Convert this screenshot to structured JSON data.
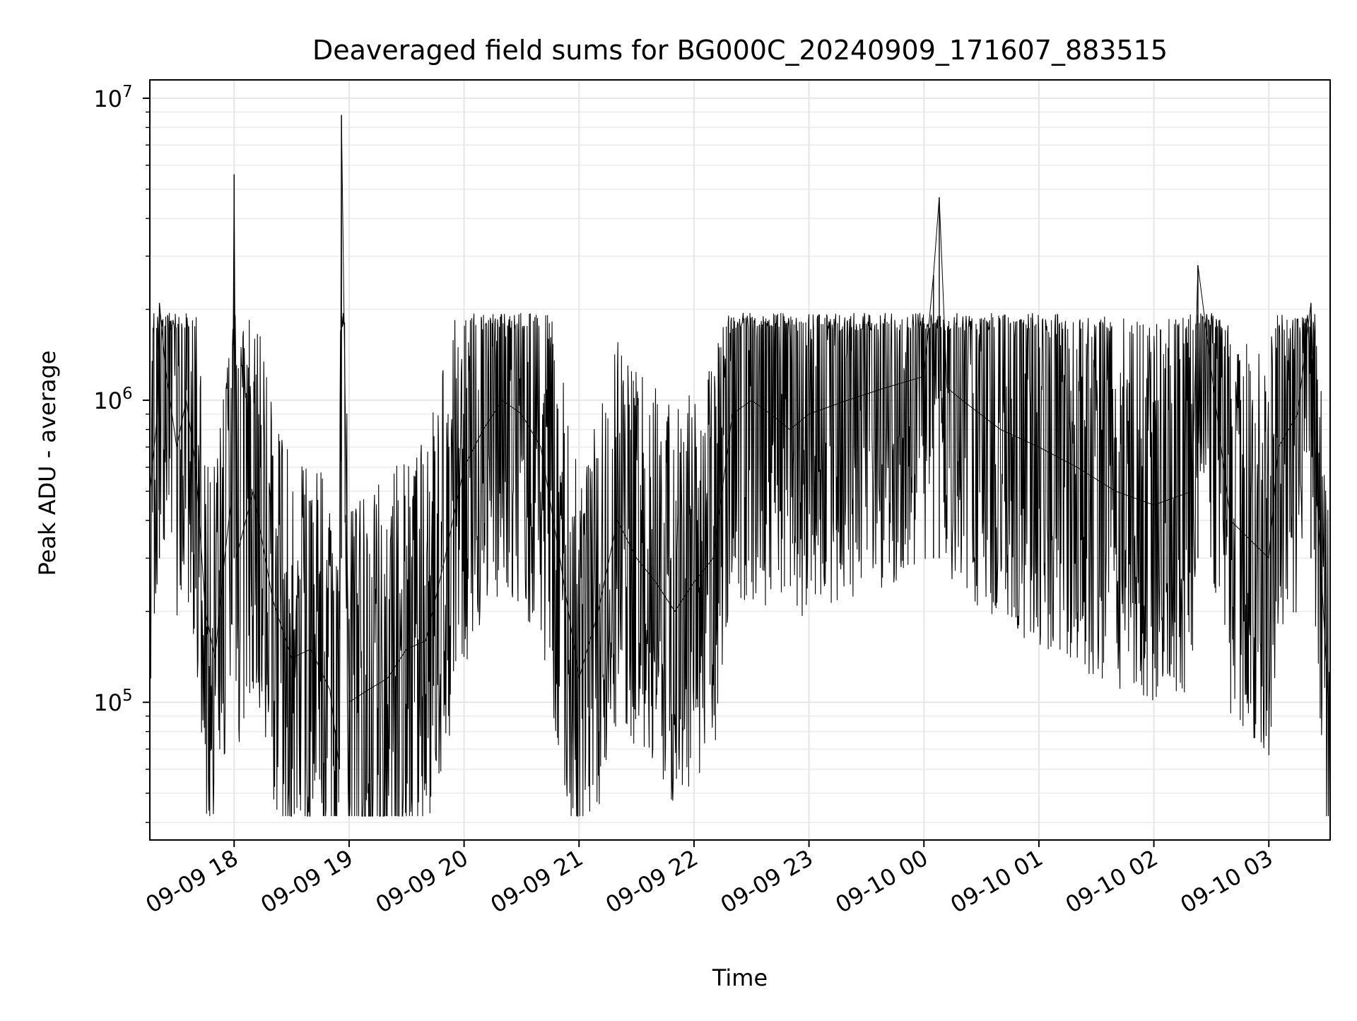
{
  "chart_data": {
    "type": "line",
    "title": "Deaveraged field sums for BG000C_20240909_171607_883515",
    "xlabel": "Time",
    "ylabel": "Peak ADU - average",
    "yscale": "log",
    "ylim": [
      35000,
      11500000
    ],
    "xlim": [
      "2024-09-09 17:16:00",
      "2024-09-10 03:32:00"
    ],
    "x_ticks": [
      {
        "t": "2024-09-09 18:00",
        "label": "09-09 18"
      },
      {
        "t": "2024-09-09 19:00",
        "label": "09-09 19"
      },
      {
        "t": "2024-09-09 20:00",
        "label": "09-09 20"
      },
      {
        "t": "2024-09-09 21:00",
        "label": "09-09 21"
      },
      {
        "t": "2024-09-09 22:00",
        "label": "09-09 22"
      },
      {
        "t": "2024-09-09 23:00",
        "label": "09-09 23"
      },
      {
        "t": "2024-09-10 00:00",
        "label": "09-10 00"
      },
      {
        "t": "2024-09-10 01:00",
        "label": "09-10 01"
      },
      {
        "t": "2024-09-10 02:00",
        "label": "09-10 02"
      },
      {
        "t": "2024-09-10 03:00",
        "label": "09-10 03"
      }
    ],
    "y_ticks": [
      {
        "value": 100000,
        "base": "10",
        "exp": "5"
      },
      {
        "value": 1000000,
        "base": "10",
        "exp": "6"
      },
      {
        "value": 10000000,
        "base": "10",
        "exp": "7"
      }
    ],
    "grid": true,
    "line_color": "#000000",
    "series": [
      {
        "points": [
          [
            "2024-09-09 17:16",
            500000
          ],
          [
            "2024-09-09 17:20",
            900000
          ],
          [
            "2024-09-09 17:21",
            2100000
          ],
          [
            "2024-09-09 17:24",
            1300000
          ],
          [
            "2024-09-09 17:30",
            700000
          ],
          [
            "2024-09-09 17:35",
            1000000
          ],
          [
            "2024-09-09 17:40",
            600000
          ],
          [
            "2024-09-09 17:45",
            200000
          ],
          [
            "2024-09-09 17:50",
            140000
          ],
          [
            "2024-09-09 17:55",
            300000
          ],
          [
            "2024-09-09 17:59",
            500000
          ],
          [
            "2024-09-09 18:00",
            5600000
          ],
          [
            "2024-09-09 18:01",
            300000
          ],
          [
            "2024-09-09 18:10",
            500000
          ],
          [
            "2024-09-09 18:20",
            220000
          ],
          [
            "2024-09-09 18:30",
            140000
          ],
          [
            "2024-09-09 18:40",
            150000
          ],
          [
            "2024-09-09 18:50",
            110000
          ],
          [
            "2024-09-09 18:55",
            60000
          ],
          [
            "2024-09-09 18:56",
            8800000
          ],
          [
            "2024-09-09 19:00",
            100000
          ],
          [
            "2024-09-09 19:10",
            110000
          ],
          [
            "2024-09-09 19:20",
            120000
          ],
          [
            "2024-09-09 19:30",
            150000
          ],
          [
            "2024-09-09 19:40",
            160000
          ],
          [
            "2024-09-09 19:50",
            300000
          ],
          [
            "2024-09-09 20:00",
            600000
          ],
          [
            "2024-09-09 20:10",
            800000
          ],
          [
            "2024-09-09 20:20",
            1000000
          ],
          [
            "2024-09-09 20:30",
            900000
          ],
          [
            "2024-09-09 20:40",
            700000
          ],
          [
            "2024-09-09 20:50",
            300000
          ],
          [
            "2024-09-09 21:00",
            120000
          ],
          [
            "2024-09-09 21:10",
            200000
          ],
          [
            "2024-09-09 21:20",
            400000
          ],
          [
            "2024-09-09 21:30",
            300000
          ],
          [
            "2024-09-09 21:40",
            250000
          ],
          [
            "2024-09-09 21:50",
            200000
          ],
          [
            "2024-09-09 22:00",
            250000
          ],
          [
            "2024-09-09 22:10",
            300000
          ],
          [
            "2024-09-09 22:20",
            900000
          ],
          [
            "2024-09-09 22:30",
            1000000
          ],
          [
            "2024-09-09 22:40",
            900000
          ],
          [
            "2024-09-09 22:50",
            800000
          ],
          [
            "2024-09-09 23:00",
            900000
          ],
          [
            "2024-09-09 23:20",
            1000000
          ],
          [
            "2024-09-09 23:40",
            1100000
          ],
          [
            "2024-09-10 00:00",
            1200000
          ],
          [
            "2024-09-10 00:05",
            2600000
          ],
          [
            "2024-09-10 00:08",
            4700000
          ],
          [
            "2024-09-10 00:12",
            1100000
          ],
          [
            "2024-09-10 00:20",
            1000000
          ],
          [
            "2024-09-10 00:40",
            800000
          ],
          [
            "2024-09-10 01:00",
            700000
          ],
          [
            "2024-09-10 01:20",
            600000
          ],
          [
            "2024-09-10 01:40",
            500000
          ],
          [
            "2024-09-10 02:00",
            450000
          ],
          [
            "2024-09-10 02:20",
            500000
          ],
          [
            "2024-09-10 02:23",
            2800000
          ],
          [
            "2024-09-10 02:40",
            400000
          ],
          [
            "2024-09-10 03:00",
            300000
          ],
          [
            "2024-09-10 03:05",
            700000
          ],
          [
            "2024-09-10 03:15",
            900000
          ],
          [
            "2024-09-10 03:22",
            2100000
          ],
          [
            "2024-09-10 03:25",
            500000
          ],
          [
            "2024-09-10 03:32",
            80000
          ]
        ]
      }
    ]
  }
}
